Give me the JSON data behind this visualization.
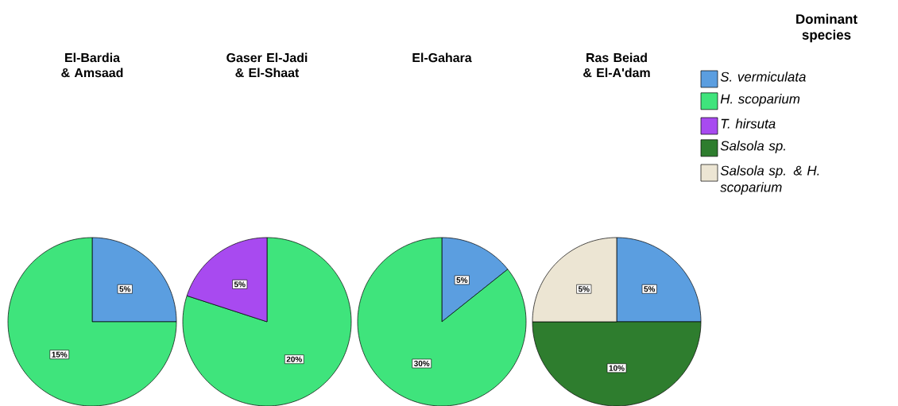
{
  "chart_data": [
    {
      "type": "pie",
      "title": "El-Bardia & Amsaad",
      "categories": [
        null,
        null,
        null,
        null,
        null
      ],
      "values": [
        5,
        15,
        null,
        null,
        null
      ],
      "value_labels": [
        "5%",
        "15%",
        null,
        null,
        null
      ],
      "colors": [
        "#5b9ee0",
        "#3fe47c",
        "#a84af0",
        "#2e7d2e",
        "#ece5d3"
      ]
    },
    {
      "type": "pie",
      "title": "Gaser El-Jadi & El-Shaat",
      "categories": [
        null,
        null,
        null,
        null,
        null
      ],
      "values": [
        null,
        20,
        5,
        null,
        null
      ],
      "value_labels": [
        null,
        "20%",
        "5%",
        null,
        null
      ],
      "colors": [
        "#5b9ee0",
        "#3fe47c",
        "#a84af0",
        "#2e7d2e",
        "#ece5d3"
      ]
    },
    {
      "type": "pie",
      "title": "El-Gahara",
      "categories": [
        null,
        null,
        null,
        null,
        null
      ],
      "values": [
        5,
        30,
        null,
        null,
        null
      ],
      "value_labels": [
        "5%",
        "30%",
        null,
        null,
        null
      ],
      "colors": [
        "#5b9ee0",
        "#3fe47c",
        "#a84af0",
        "#2e7d2e",
        "#ece5d3"
      ]
    },
    {
      "type": "pie",
      "title": "Ras Beiad & El-A'dam",
      "categories": [
        "S. vermiculata",
        "H. scoparium",
        "T. hirsuta",
        "Salsola sp.",
        "Salsola sp. & H. scoparium"
      ],
      "values": [
        5,
        null,
        null,
        10,
        5
      ],
      "value_labels": [
        "5%",
        null,
        null,
        "10%",
        "5%"
      ],
      "colors": [
        "#5b9ee0",
        "#3fe47c",
        "#a84af0",
        "#2e7d2e",
        "#ece5d3"
      ],
      "legend": "right",
      "legend_title": "Dominant species"
    }
  ]
}
